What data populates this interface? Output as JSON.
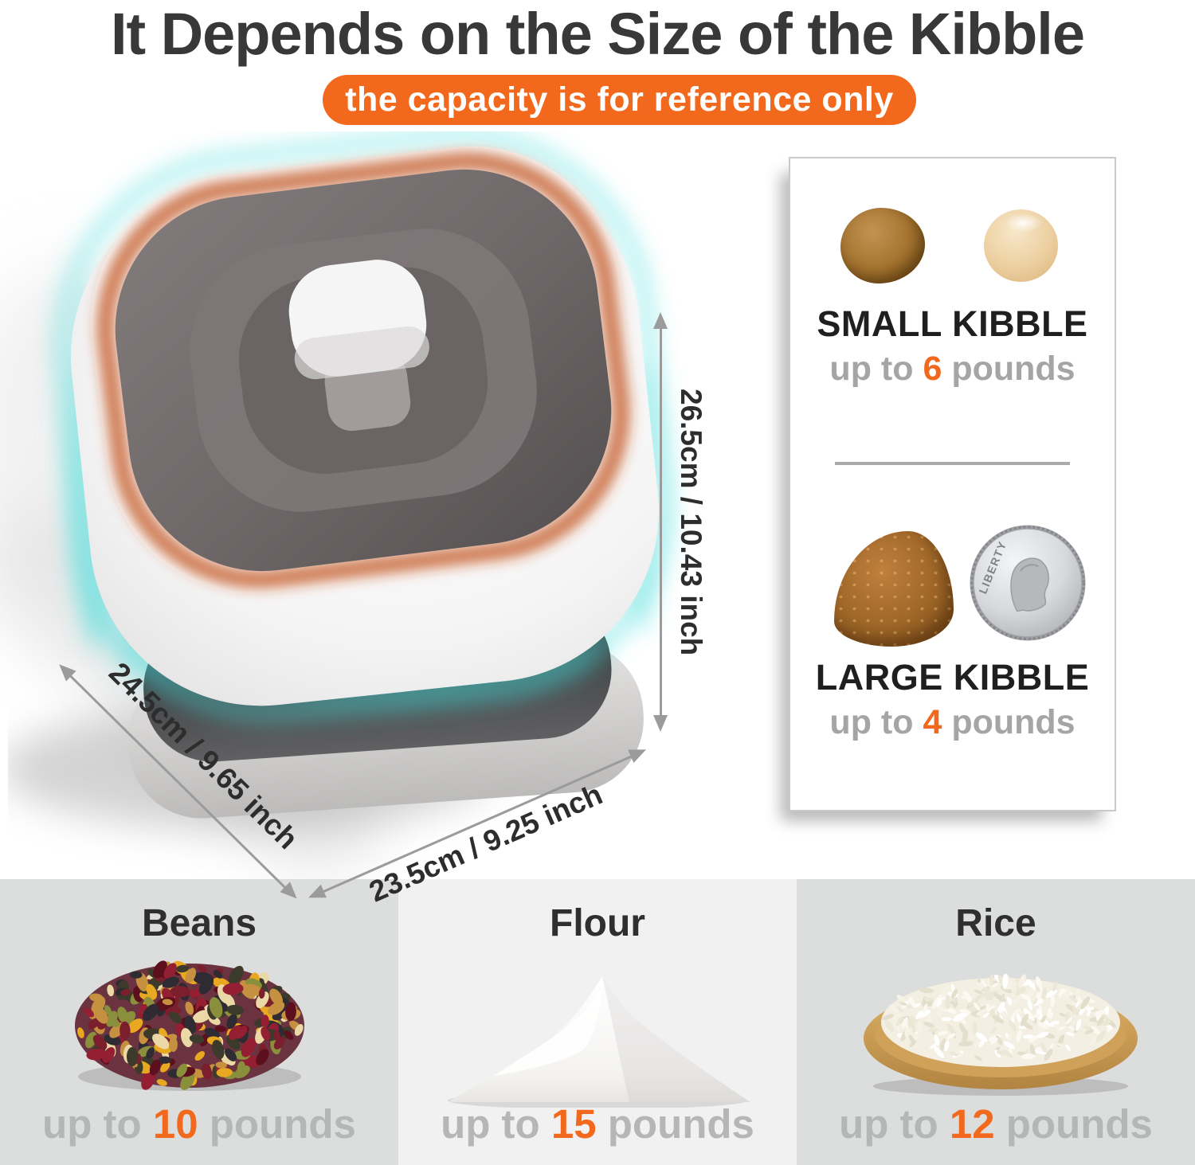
{
  "header": {
    "title": "It Depends on the Size of the Kibble",
    "badge": "the capacity is for reference only"
  },
  "product": {
    "dimensions": {
      "height": "26.5cm / 10.43 inch",
      "depth": "24.5cm / 9.65 inch",
      "width": "23.5cm / 9.25 inch"
    }
  },
  "kibble_card": {
    "coin_text": "LIBERTY",
    "items": [
      {
        "label": "SMALL KIBBLE",
        "prefix": "up to",
        "value": "6",
        "suffix": "pounds"
      },
      {
        "label": "LARGE KIBBLE",
        "prefix": "up to",
        "value": "4",
        "suffix": "pounds"
      }
    ]
  },
  "capacity_panels": [
    {
      "name": "Beans",
      "prefix": "up to",
      "value": "10",
      "suffix": "pounds"
    },
    {
      "name": "Flour",
      "prefix": "up to",
      "value": "15",
      "suffix": "pounds"
    },
    {
      "name": "Rice",
      "prefix": "up to",
      "value": "12",
      "suffix": "pounds"
    }
  ],
  "colors": {
    "accent": "#F2691D",
    "arrow": "#9B9B9B",
    "muted_caption": "#B5B6B6",
    "card_caption": "#A5A5A5",
    "heading": "#383838",
    "panel_side_bg": "#DCDDDD",
    "panel_mid_bg": "#F1F1F2",
    "glow_cyan": "#4ADCDC",
    "glow_orange": "#C96A3C"
  }
}
